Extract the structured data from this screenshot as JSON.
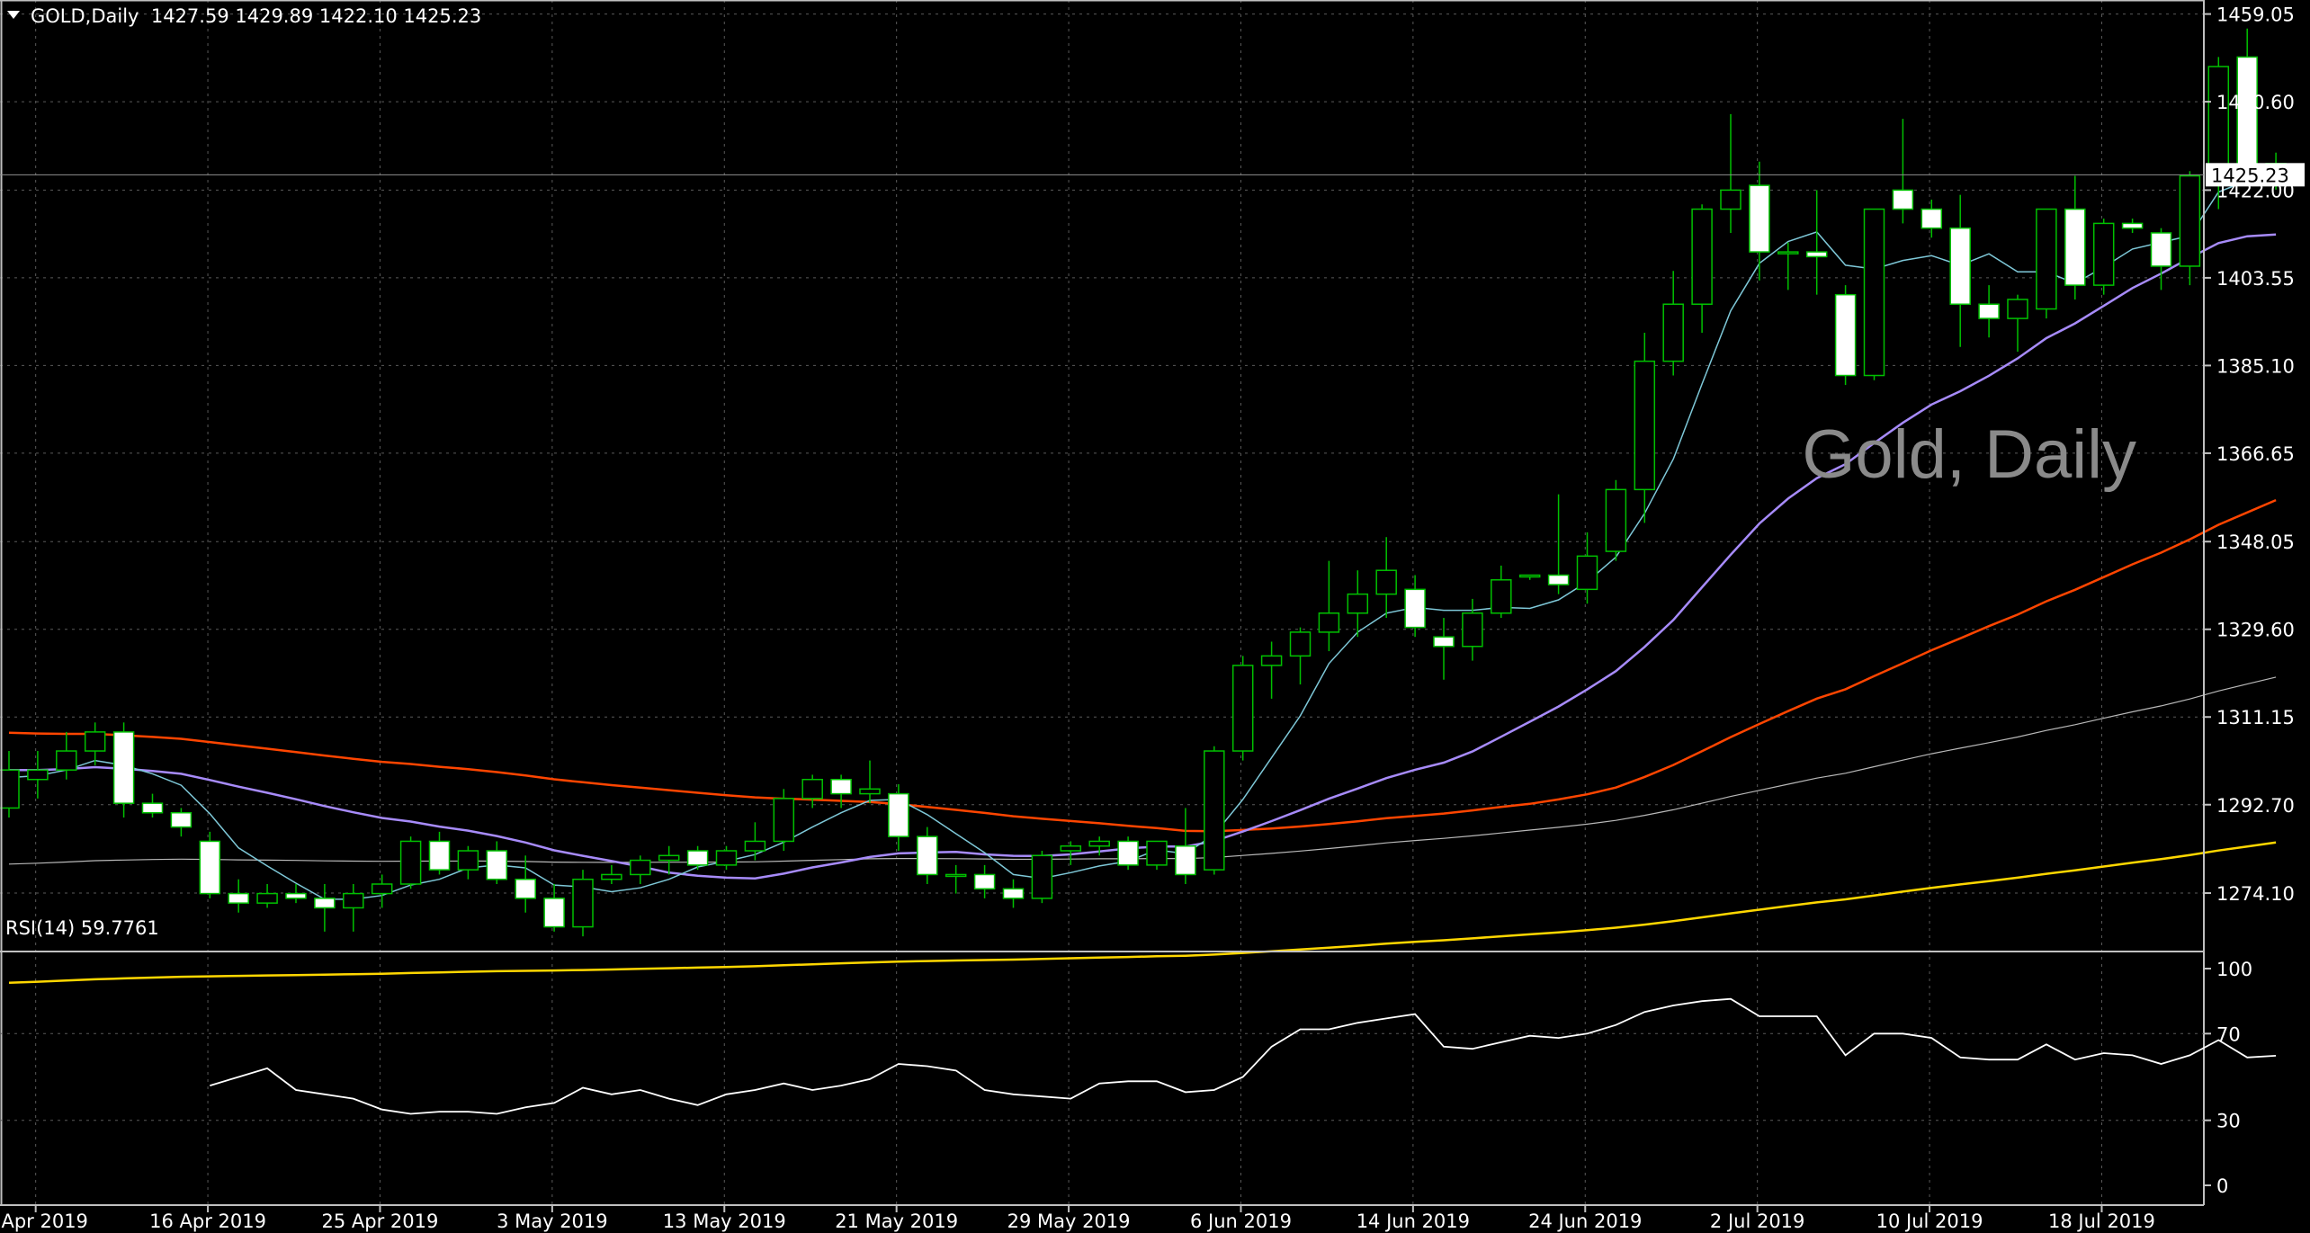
{
  "header": {
    "symbol": "GOLD,Daily",
    "ohlc": "1427.59 1429.89 1422.10 1425.23"
  },
  "watermark": "Gold, Daily",
  "rsi_label": "RSI(14) 59.7761",
  "current_price_label": "1425.23",
  "colors": {
    "background": "#000000",
    "grid": "#5a5a5a",
    "bull_candle": "#000000",
    "bear_candle": "#ffffff",
    "wick": "#00c000",
    "ma_fast": "#7ec8d8",
    "ma_mid": "#a78bfa",
    "ma_slow": "#ff4500",
    "ma_long": "#b8b8b8",
    "ma_200": "#ffd700",
    "rsi": "#ffffff"
  },
  "chart_data": {
    "type": "candlestick",
    "title": "GOLD,Daily",
    "y_ticks": [
      "1459.05",
      "1440.60",
      "1422.00",
      "1403.55",
      "1385.10",
      "1366.65",
      "1348.05",
      "1329.60",
      "1311.15",
      "1292.70",
      "1274.10"
    ],
    "ylim": [
      1262.0,
      1462.0
    ],
    "x_tick_labels": [
      "8 Apr 2019",
      "16 Apr 2019",
      "25 Apr 2019",
      "3 May 2019",
      "13 May 2019",
      "21 May 2019",
      "29 May 2019",
      "6 Jun 2019",
      "14 Jun 2019",
      "24 Jun 2019",
      "2 Jul 2019",
      "10 Jul 2019",
      "18 Jul 2019"
    ],
    "candles": [
      [
        1292,
        1304,
        1290,
        1300
      ],
      [
        1298,
        1304,
        1294,
        1300
      ],
      [
        1300,
        1308,
        1298,
        1304
      ],
      [
        1304,
        1310,
        1301,
        1308
      ],
      [
        1308,
        1310,
        1290,
        1293
      ],
      [
        1293,
        1295,
        1290,
        1291
      ],
      [
        1291,
        1292,
        1286,
        1288
      ],
      [
        1285,
        1287,
        1273,
        1274
      ],
      [
        1274,
        1277,
        1270,
        1272
      ],
      [
        1272,
        1276,
        1271,
        1274
      ],
      [
        1274,
        1276,
        1272,
        1273
      ],
      [
        1273,
        1276,
        1266,
        1271
      ],
      [
        1271,
        1276,
        1266,
        1274
      ],
      [
        1274,
        1278,
        1271,
        1276
      ],
      [
        1276,
        1286,
        1275,
        1285
      ],
      [
        1285,
        1287,
        1278,
        1279
      ],
      [
        1279,
        1284,
        1277,
        1283
      ],
      [
        1283,
        1285,
        1276,
        1277
      ],
      [
        1277,
        1282,
        1270,
        1273
      ],
      [
        1273,
        1276,
        1266,
        1267
      ],
      [
        1267,
        1279,
        1265,
        1277
      ],
      [
        1277,
        1280,
        1276,
        1278
      ],
      [
        1278,
        1282,
        1276,
        1281
      ],
      [
        1281,
        1284,
        1278,
        1282
      ],
      [
        1283,
        1284,
        1279,
        1280
      ],
      [
        1280,
        1284,
        1279,
        1283
      ],
      [
        1283,
        1289,
        1281,
        1285
      ],
      [
        1285,
        1296,
        1283,
        1294
      ],
      [
        1294,
        1299,
        1292,
        1298
      ],
      [
        1298,
        1299,
        1292,
        1295
      ],
      [
        1295,
        1302,
        1293,
        1296
      ],
      [
        1295,
        1297,
        1283,
        1286
      ],
      [
        1286,
        1288,
        1276,
        1278
      ],
      [
        1278,
        1280,
        1274,
        1278
      ],
      [
        1278,
        1280,
        1273,
        1275
      ],
      [
        1275,
        1277,
        1271,
        1273
      ],
      [
        1273,
        1283,
        1272,
        1282
      ],
      [
        1283,
        1285,
        1280,
        1284
      ],
      [
        1284,
        1286,
        1282,
        1285
      ],
      [
        1285,
        1286,
        1279,
        1280
      ],
      [
        1280,
        1285,
        1279,
        1285
      ],
      [
        1284,
        1292,
        1276,
        1278
      ],
      [
        1279,
        1305,
        1278,
        1304
      ],
      [
        1304,
        1324,
        1302,
        1322
      ],
      [
        1322,
        1327,
        1315,
        1324
      ],
      [
        1324,
        1330,
        1318,
        1329
      ],
      [
        1329,
        1344,
        1325,
        1333
      ],
      [
        1333,
        1342,
        1328,
        1337
      ],
      [
        1337,
        1349,
        1332,
        1342
      ],
      [
        1338,
        1341,
        1328,
        1330
      ],
      [
        1328,
        1332,
        1319,
        1326
      ],
      [
        1326,
        1336,
        1323,
        1333
      ],
      [
        1333,
        1343,
        1332,
        1340
      ],
      [
        1341,
        1341,
        1340,
        1341
      ],
      [
        1341,
        1358,
        1337,
        1339
      ],
      [
        1338,
        1350,
        1335,
        1345
      ],
      [
        1346,
        1361,
        1344,
        1359
      ],
      [
        1359,
        1392,
        1352,
        1386
      ],
      [
        1386,
        1405,
        1383,
        1398
      ],
      [
        1398,
        1419,
        1392,
        1418
      ],
      [
        1418,
        1438,
        1413,
        1422
      ],
      [
        1423,
        1428,
        1403,
        1409
      ],
      [
        1409,
        1411,
        1401,
        1409
      ],
      [
        1409,
        1422,
        1400,
        1408
      ],
      [
        1400,
        1402,
        1381,
        1383
      ],
      [
        1383,
        1418,
        1382,
        1418
      ],
      [
        1422,
        1437,
        1415,
        1418
      ],
      [
        1418,
        1420,
        1412,
        1414
      ],
      [
        1414,
        1421,
        1389,
        1398
      ],
      [
        1398,
        1402,
        1391,
        1395
      ],
      [
        1395,
        1400,
        1388,
        1399
      ],
      [
        1397,
        1418,
        1395,
        1418
      ],
      [
        1418,
        1425,
        1399,
        1402
      ],
      [
        1402,
        1416,
        1400,
        1415
      ],
      [
        1415,
        1416,
        1413,
        1414
      ],
      [
        1413,
        1414,
        1401,
        1406
      ],
      [
        1406,
        1426,
        1402,
        1425
      ],
      [
        1426,
        1450,
        1418,
        1448
      ],
      [
        1450,
        1456,
        1423,
        1427
      ],
      [
        1427.59,
        1429.89,
        1422.1,
        1425.23
      ]
    ],
    "rsi": {
      "name": "RSI(14)",
      "last": 59.7761,
      "ylim": [
        0,
        100
      ],
      "levels": [
        100,
        70,
        30,
        0
      ],
      "values": [
        46,
        50,
        54,
        44,
        42,
        40,
        35,
        33,
        34,
        34,
        33,
        36,
        38,
        45,
        42,
        44,
        40,
        37,
        42,
        44,
        47,
        44,
        46,
        49,
        56,
        55,
        53,
        44,
        42,
        41,
        40,
        47,
        48,
        48,
        43,
        44,
        50,
        64,
        72,
        72,
        75,
        77,
        79,
        64,
        63,
        66,
        69,
        68,
        70,
        74,
        80,
        83,
        85,
        86,
        78,
        78,
        78,
        60,
        70,
        70,
        68,
        59,
        58,
        58,
        65,
        58,
        61,
        60,
        56,
        60,
        67,
        59,
        59.7761
      ]
    }
  }
}
